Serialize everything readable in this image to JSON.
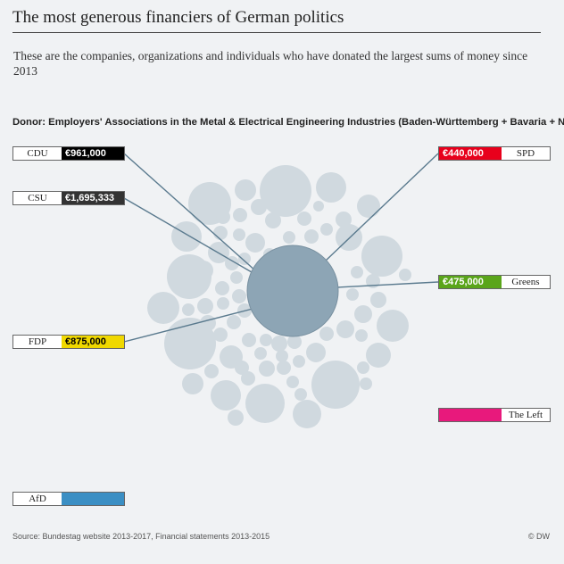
{
  "title": "The most generous financiers of German politics",
  "subtitle": "These are the companies, organizations and individuals who have donated the largest sums of money since 2013",
  "donor_label": "Donor: Employers' Associations in the Metal & Electrical Engineering Industries (Baden-Württemberg + Bavaria + NRW)",
  "source": "Source: Bundestag website 2013-2017, Financial statements 2013-2015",
  "credit": "© DW",
  "colors": {
    "background": "#f0f2f4",
    "bubble": "#d0d9df",
    "bubble_selected": "#8da5b5",
    "connector": "#5a7a8e"
  },
  "chart_data": {
    "type": "bubble",
    "selected_donor": "Employers' Associations in the Metal & Electrical Engineering Industries (Baden-Württemberg + Bavaria + NRW)",
    "parties": [
      {
        "name": "CDU",
        "amount": "€961,000",
        "value": 961000,
        "color": "#000000",
        "text_color": "#ffffff",
        "side": "left"
      },
      {
        "name": "CSU",
        "amount": "€1,695,333",
        "value": 1695333,
        "color": "#333333",
        "text_color": "#ffffff",
        "side": "left"
      },
      {
        "name": "FDP",
        "amount": "€875,000",
        "value": 875000,
        "color": "#f0d800",
        "text_color": "#000000",
        "side": "left"
      },
      {
        "name": "AfD",
        "amount": "",
        "value": 0,
        "color": "#3b8fc4",
        "text_color": "#ffffff",
        "side": "left"
      },
      {
        "name": "SPD",
        "amount": "€440,000",
        "value": 440000,
        "color": "#e8001c",
        "text_color": "#ffffff",
        "side": "right"
      },
      {
        "name": "Greens",
        "amount": "€475,000",
        "value": 475000,
        "color": "#5aa51a",
        "text_color": "#ffffff",
        "side": "right"
      },
      {
        "name": "The Left",
        "amount": "",
        "value": 0,
        "color": "#e8197c",
        "text_color": "#ffffff",
        "side": "right"
      }
    ]
  }
}
